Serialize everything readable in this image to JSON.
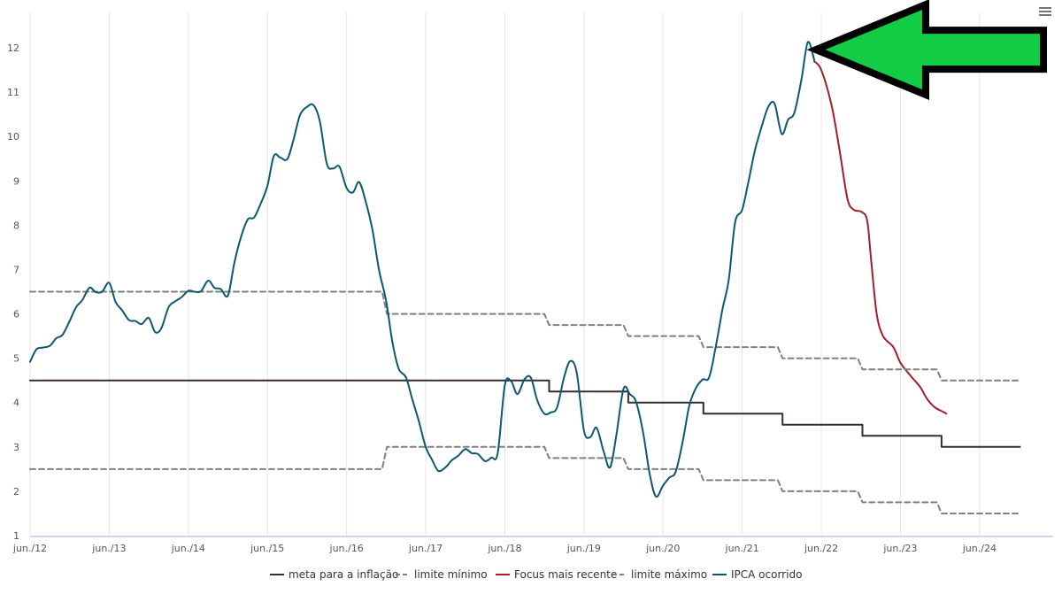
{
  "chart_data": {
    "type": "line",
    "title": "",
    "xlabel": "",
    "ylabel": "",
    "x_domain": [
      2012.42,
      2025.35
    ],
    "ylim": [
      1,
      12.8
    ],
    "grid": true,
    "legend_position": "bottom",
    "x_ticks": [
      {
        "x": 2012.42,
        "label": "jun./12"
      },
      {
        "x": 2013.42,
        "label": "jun./13"
      },
      {
        "x": 2014.42,
        "label": "jun./14"
      },
      {
        "x": 2015.42,
        "label": "jun./15"
      },
      {
        "x": 2016.42,
        "label": "jun./16"
      },
      {
        "x": 2017.42,
        "label": "jun./17"
      },
      {
        "x": 2018.42,
        "label": "jun./18"
      },
      {
        "x": 2019.42,
        "label": "jun./19"
      },
      {
        "x": 2020.42,
        "label": "jun./20"
      },
      {
        "x": 2021.42,
        "label": "jun./21"
      },
      {
        "x": 2022.42,
        "label": "jun./22"
      },
      {
        "x": 2023.42,
        "label": "jun./23"
      },
      {
        "x": 2024.42,
        "label": "jun./24"
      }
    ],
    "y_ticks": [
      1,
      2,
      3,
      4,
      5,
      6,
      7,
      8,
      9,
      10,
      11,
      12
    ],
    "series": [
      {
        "name": "meta para a inflação",
        "color": "#3b2a2e",
        "dash": "solid",
        "step": true,
        "points": [
          [
            2012.42,
            4.5
          ],
          [
            2018.98,
            4.5
          ],
          [
            2018.98,
            4.25
          ],
          [
            2019.98,
            4.25
          ],
          [
            2019.98,
            4.0
          ],
          [
            2020.93,
            4.0
          ],
          [
            2020.93,
            3.75
          ],
          [
            2021.93,
            3.75
          ],
          [
            2021.93,
            3.5
          ],
          [
            2022.94,
            3.5
          ],
          [
            2022.94,
            3.25
          ],
          [
            2023.94,
            3.25
          ],
          [
            2023.94,
            3.0
          ],
          [
            2024.93,
            3.0
          ]
        ]
      },
      {
        "name": "limite mínimo",
        "color": "#808080",
        "dash": "dashed",
        "step": true,
        "points": [
          [
            2012.42,
            2.5
          ],
          [
            2016.87,
            2.5
          ],
          [
            2016.93,
            3.0
          ],
          [
            2018.92,
            3.0
          ],
          [
            2018.98,
            2.75
          ],
          [
            2019.92,
            2.75
          ],
          [
            2019.98,
            2.5
          ],
          [
            2020.87,
            2.5
          ],
          [
            2020.93,
            2.25
          ],
          [
            2021.87,
            2.25
          ],
          [
            2021.93,
            2.0
          ],
          [
            2022.88,
            2.0
          ],
          [
            2022.94,
            1.75
          ],
          [
            2023.88,
            1.75
          ],
          [
            2023.94,
            1.5
          ],
          [
            2024.93,
            1.5
          ]
        ]
      },
      {
        "name": "Focus mais recente",
        "color": "#a31d2a",
        "dash": "solid",
        "step": false,
        "points": [
          [
            2022.33,
            11.7
          ],
          [
            2022.42,
            11.5
          ],
          [
            2022.55,
            10.7
          ],
          [
            2022.65,
            9.7
          ],
          [
            2022.75,
            8.6
          ],
          [
            2022.83,
            8.35
          ],
          [
            2022.93,
            8.3
          ],
          [
            2023.0,
            8.1
          ],
          [
            2023.05,
            7.2
          ],
          [
            2023.12,
            6.0
          ],
          [
            2023.2,
            5.5
          ],
          [
            2023.33,
            5.25
          ],
          [
            2023.42,
            4.9
          ],
          [
            2023.55,
            4.6
          ],
          [
            2023.67,
            4.35
          ],
          [
            2023.75,
            4.1
          ],
          [
            2023.85,
            3.9
          ],
          [
            2023.95,
            3.8
          ],
          [
            2024.0,
            3.75
          ]
        ]
      },
      {
        "name": "limite máximo",
        "color": "#808080",
        "dash": "dashed",
        "step": true,
        "points": [
          [
            2012.42,
            6.5
          ],
          [
            2016.87,
            6.5
          ],
          [
            2016.93,
            6.0
          ],
          [
            2018.92,
            6.0
          ],
          [
            2018.98,
            5.75
          ],
          [
            2019.92,
            5.75
          ],
          [
            2019.98,
            5.5
          ],
          [
            2020.87,
            5.5
          ],
          [
            2020.93,
            5.25
          ],
          [
            2021.87,
            5.25
          ],
          [
            2021.93,
            5.0
          ],
          [
            2022.88,
            5.0
          ],
          [
            2022.94,
            4.75
          ],
          [
            2023.88,
            4.75
          ],
          [
            2023.94,
            4.5
          ],
          [
            2024.93,
            4.5
          ]
        ]
      },
      {
        "name": "IPCA ocorrido",
        "color": "#0d5870",
        "dash": "solid",
        "step": false,
        "points": [
          [
            2012.42,
            4.92
          ],
          [
            2012.5,
            5.2
          ],
          [
            2012.58,
            5.24
          ],
          [
            2012.67,
            5.28
          ],
          [
            2012.75,
            5.45
          ],
          [
            2012.83,
            5.53
          ],
          [
            2012.92,
            5.84
          ],
          [
            2013.0,
            6.15
          ],
          [
            2013.08,
            6.31
          ],
          [
            2013.17,
            6.59
          ],
          [
            2013.25,
            6.49
          ],
          [
            2013.33,
            6.5
          ],
          [
            2013.42,
            6.7
          ],
          [
            2013.5,
            6.27
          ],
          [
            2013.58,
            6.09
          ],
          [
            2013.67,
            5.86
          ],
          [
            2013.75,
            5.84
          ],
          [
            2013.83,
            5.77
          ],
          [
            2013.92,
            5.91
          ],
          [
            2014.0,
            5.59
          ],
          [
            2014.08,
            5.68
          ],
          [
            2014.17,
            6.15
          ],
          [
            2014.25,
            6.28
          ],
          [
            2014.33,
            6.37
          ],
          [
            2014.42,
            6.52
          ],
          [
            2014.5,
            6.5
          ],
          [
            2014.58,
            6.51
          ],
          [
            2014.67,
            6.75
          ],
          [
            2014.75,
            6.59
          ],
          [
            2014.83,
            6.56
          ],
          [
            2014.92,
            6.41
          ],
          [
            2015.0,
            7.14
          ],
          [
            2015.08,
            7.7
          ],
          [
            2015.17,
            8.13
          ],
          [
            2015.25,
            8.17
          ],
          [
            2015.33,
            8.47
          ],
          [
            2015.42,
            8.89
          ],
          [
            2015.5,
            9.56
          ],
          [
            2015.58,
            9.53
          ],
          [
            2015.67,
            9.49
          ],
          [
            2015.75,
            9.93
          ],
          [
            2015.83,
            10.48
          ],
          [
            2015.92,
            10.67
          ],
          [
            2016.0,
            10.71
          ],
          [
            2016.08,
            10.36
          ],
          [
            2016.17,
            9.39
          ],
          [
            2016.25,
            9.28
          ],
          [
            2016.33,
            9.32
          ],
          [
            2016.42,
            8.84
          ],
          [
            2016.5,
            8.74
          ],
          [
            2016.58,
            8.97
          ],
          [
            2016.67,
            8.48
          ],
          [
            2016.75,
            7.87
          ],
          [
            2016.83,
            6.99
          ],
          [
            2016.92,
            6.29
          ],
          [
            2017.0,
            5.35
          ],
          [
            2017.08,
            4.76
          ],
          [
            2017.17,
            4.57
          ],
          [
            2017.25,
            4.08
          ],
          [
            2017.33,
            3.6
          ],
          [
            2017.42,
            3.0
          ],
          [
            2017.5,
            2.71
          ],
          [
            2017.58,
            2.46
          ],
          [
            2017.67,
            2.54
          ],
          [
            2017.75,
            2.7
          ],
          [
            2017.83,
            2.8
          ],
          [
            2017.92,
            2.95
          ],
          [
            2018.0,
            2.86
          ],
          [
            2018.08,
            2.84
          ],
          [
            2018.17,
            2.68
          ],
          [
            2018.25,
            2.76
          ],
          [
            2018.33,
            2.86
          ],
          [
            2018.42,
            4.39
          ],
          [
            2018.5,
            4.48
          ],
          [
            2018.58,
            4.19
          ],
          [
            2018.67,
            4.53
          ],
          [
            2018.75,
            4.56
          ],
          [
            2018.83,
            4.05
          ],
          [
            2018.92,
            3.75
          ],
          [
            2019.0,
            3.78
          ],
          [
            2019.08,
            3.89
          ],
          [
            2019.17,
            4.58
          ],
          [
            2019.25,
            4.94
          ],
          [
            2019.33,
            4.66
          ],
          [
            2019.42,
            3.37
          ],
          [
            2019.5,
            3.22
          ],
          [
            2019.58,
            3.43
          ],
          [
            2019.67,
            2.89
          ],
          [
            2019.75,
            2.54
          ],
          [
            2019.83,
            3.27
          ],
          [
            2019.92,
            4.31
          ],
          [
            2020.0,
            4.19
          ],
          [
            2020.08,
            4.01
          ],
          [
            2020.17,
            3.3
          ],
          [
            2020.25,
            2.4
          ],
          [
            2020.33,
            1.88
          ],
          [
            2020.42,
            2.13
          ],
          [
            2020.5,
            2.31
          ],
          [
            2020.58,
            2.44
          ],
          [
            2020.67,
            3.14
          ],
          [
            2020.75,
            3.92
          ],
          [
            2020.83,
            4.31
          ],
          [
            2020.92,
            4.52
          ],
          [
            2021.0,
            4.56
          ],
          [
            2021.08,
            5.2
          ],
          [
            2021.17,
            6.1
          ],
          [
            2021.25,
            6.76
          ],
          [
            2021.33,
            8.06
          ],
          [
            2021.42,
            8.35
          ],
          [
            2021.5,
            8.99
          ],
          [
            2021.58,
            9.68
          ],
          [
            2021.67,
            10.25
          ],
          [
            2021.75,
            10.67
          ],
          [
            2021.83,
            10.74
          ],
          [
            2021.92,
            10.06
          ],
          [
            2022.0,
            10.38
          ],
          [
            2022.08,
            10.54
          ],
          [
            2022.17,
            11.3
          ],
          [
            2022.25,
            12.13
          ],
          [
            2022.33,
            11.73
          ]
        ]
      }
    ],
    "annotation": {
      "type": "arrow",
      "color": "#11cc44",
      "outline": "#000000",
      "points_to": [
        2022.33,
        11.96
      ]
    }
  },
  "legend": {
    "items": [
      {
        "label": "meta para a inflação",
        "color": "#3b2a2e",
        "style": "solid"
      },
      {
        "label": "limite mínimo",
        "color": "#808080",
        "style": "dashed"
      },
      {
        "label": "Focus mais recente",
        "color": "#a31d2a",
        "style": "solid"
      },
      {
        "label": "limite máximo",
        "color": "#808080",
        "style": "dashed"
      },
      {
        "label": "IPCA ocorrido",
        "color": "#0d5870",
        "style": "solid"
      }
    ]
  },
  "toolbar": {
    "menu_icon": "hamburger-menu-icon"
  }
}
